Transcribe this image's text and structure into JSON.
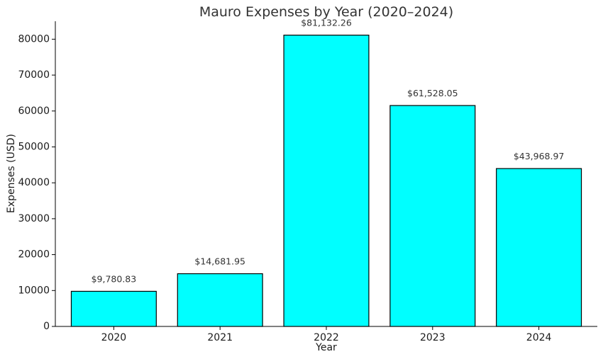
{
  "chart_data": {
    "type": "bar",
    "title": "Mauro Expenses by Year (2020–2024)",
    "xlabel": "Year",
    "ylabel": "Expenses (USD)",
    "categories": [
      "2020",
      "2021",
      "2022",
      "2023",
      "2024"
    ],
    "values": [
      9780.83,
      14681.95,
      81132.26,
      61528.05,
      43968.97
    ],
    "data_labels": [
      "$9,780.83",
      "$14,681.95",
      "$81,132.26",
      "$61,528.05",
      "$43,968.97"
    ],
    "ylim": [
      0,
      85000
    ],
    "yticks": [
      0,
      10000,
      20000,
      30000,
      40000,
      50000,
      60000,
      70000,
      80000
    ],
    "ytick_labels": [
      "0",
      "10000",
      "20000",
      "30000",
      "40000",
      "50000",
      "60000",
      "70000",
      "80000"
    ],
    "bar_color": "#00ffff",
    "edge_color": "#000000",
    "grid": false,
    "legend": false
  }
}
